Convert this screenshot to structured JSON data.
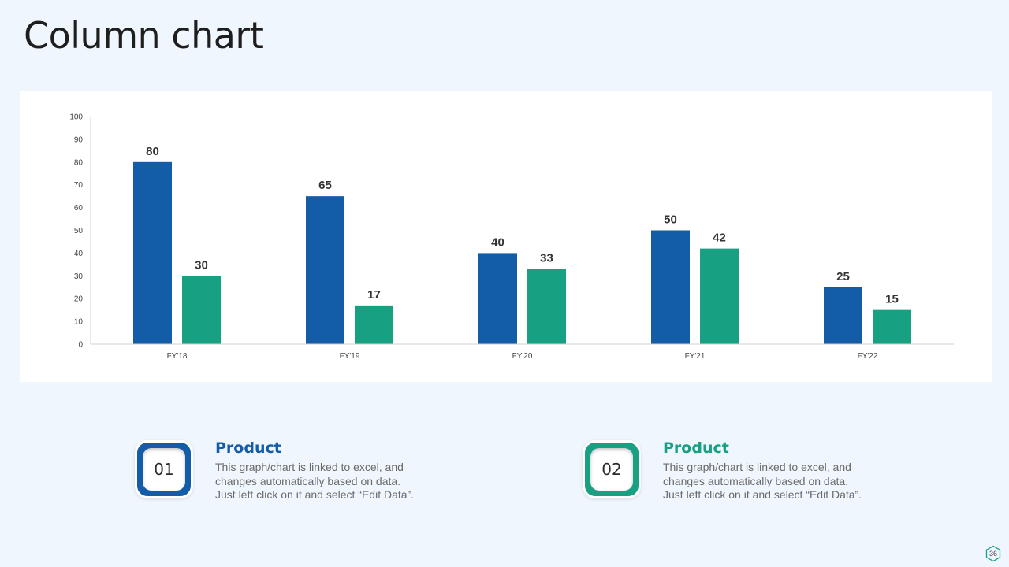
{
  "slide": {
    "title": "Column chart",
    "page_number": "36"
  },
  "colors": {
    "series_1": "#125ca8",
    "series_2": "#18a083",
    "background": "#f0f6fd"
  },
  "chart_data": {
    "type": "bar",
    "title": "",
    "xlabel": "",
    "ylabel": "",
    "categories": [
      "FY'18",
      "FY'19",
      "FY'20",
      "FY'21",
      "FY'22"
    ],
    "series": [
      {
        "name": "Product 01",
        "values": [
          80,
          65,
          40,
          50,
          25
        ]
      },
      {
        "name": "Product 02",
        "values": [
          30,
          17,
          33,
          42,
          15
        ]
      }
    ],
    "ylim": [
      0,
      100
    ],
    "yticks": [
      0,
      10,
      20,
      30,
      40,
      50,
      60,
      70,
      80,
      90,
      100
    ],
    "grid": false,
    "data_labels": true,
    "legend": "none"
  },
  "cards": [
    {
      "badge": "01",
      "title": "Product",
      "lines": [
        "This graph/chart is linked to excel, and",
        "changes automatically based on data.",
        "Just left click on it and select “Edit Data”."
      ]
    },
    {
      "badge": "02",
      "title": "Product",
      "lines": [
        "This graph/chart is linked to excel, and",
        "changes automatically based on data.",
        "Just left click on it and select “Edit Data”."
      ]
    }
  ]
}
